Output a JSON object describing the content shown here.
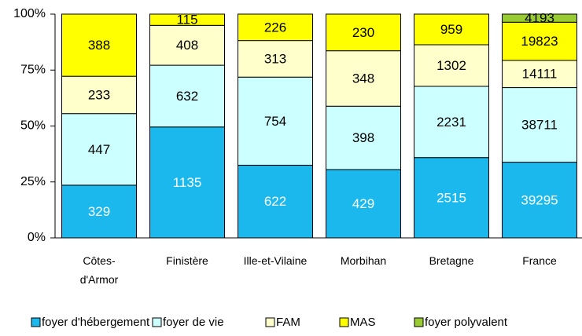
{
  "chart_data": {
    "type": "stacked_bar_percent",
    "categories": [
      "Côtes-\nd'Armor",
      "Finistère",
      "Ille-et-Vilaine",
      "Morbihan",
      "Bretagne",
      "France"
    ],
    "series": [
      {
        "name": "foyer d'hébergement",
        "color": "#1ab8ec",
        "label_color": "#ffffff",
        "values": [
          329,
          1135,
          622,
          429,
          2515,
          39295
        ]
      },
      {
        "name": "foyer de vie",
        "color": "#ccffff",
        "label_color": "#000000",
        "values": [
          447,
          632,
          754,
          398,
          2231,
          38711
        ]
      },
      {
        "name": "FAM",
        "color": "#ffffcc",
        "label_color": "#000000",
        "values": [
          233,
          408,
          313,
          348,
          1302,
          14111
        ]
      },
      {
        "name": "MAS",
        "color": "#ffff00",
        "label_color": "#000000",
        "values": [
          388,
          115,
          226,
          230,
          959,
          19823
        ]
      },
      {
        "name": "foyer polyvalent",
        "color": "#99cc33",
        "label_color": "#000000",
        "values": [
          null,
          null,
          null,
          null,
          null,
          4193
        ]
      }
    ],
    "ylim": [
      0,
      100
    ],
    "yticks": [
      {
        "value": 0,
        "label": "0%"
      },
      {
        "value": 25,
        "label": "25%"
      },
      {
        "value": 50,
        "label": "50%"
      },
      {
        "value": 75,
        "label": "75%"
      },
      {
        "value": 100,
        "label": "100%"
      }
    ],
    "legend": "bottom"
  }
}
